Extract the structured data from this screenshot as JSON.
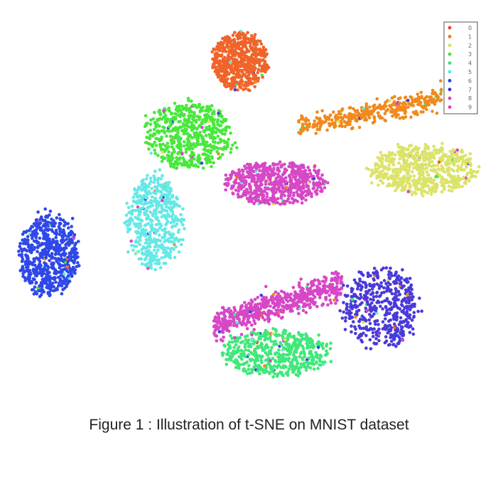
{
  "caption": "Figure 1 : Illustration of t-SNE on MNIST dataset",
  "chart_data": {
    "type": "scatter",
    "title": "",
    "xlabel": "",
    "ylabel": "",
    "axes_visible": false,
    "grid": false,
    "legend_position": "top-right",
    "legend": [
      {
        "label": "0",
        "color": "#e8452c",
        "marker": "square"
      },
      {
        "label": "1",
        "color": "#f07a14",
        "marker": "star"
      },
      {
        "label": "2",
        "color": "#d8e060",
        "marker": "circle"
      },
      {
        "label": "3",
        "color": "#40e640",
        "marker": "circle"
      },
      {
        "label": "4",
        "color": "#3ee07a",
        "marker": "circle"
      },
      {
        "label": "5",
        "color": "#5ae8e6",
        "marker": "circle"
      },
      {
        "label": "6",
        "color": "#2040e0",
        "marker": "circle"
      },
      {
        "label": "7",
        "color": "#3c30d0",
        "marker": "circle"
      },
      {
        "label": "8",
        "color": "#d640c8",
        "marker": "circle"
      },
      {
        "label": "9",
        "color": "#d640c8",
        "marker": "circle"
      }
    ],
    "clusters": [
      {
        "label": "0",
        "color": "#f0642a",
        "center": [
          0.52,
          0.85
        ],
        "spread": [
          0.09,
          0.085
        ],
        "shape": "ellipse",
        "n": 650
      },
      {
        "label": "1",
        "color": "#f08a1e",
        "center": [
          1.42,
          0.62
        ],
        "spread": [
          0.36,
          0.045
        ],
        "shape": "band",
        "slope": 0.19,
        "n": 550
      },
      {
        "label": "2",
        "color": "#dbe36a",
        "center": [
          1.53,
          0.29
        ],
        "spread": [
          0.17,
          0.075
        ],
        "shape": "ellipse",
        "n": 650
      },
      {
        "label": "3",
        "color": "#48e83c",
        "center": [
          0.24,
          0.47
        ],
        "spread": [
          0.14,
          0.1
        ],
        "shape": "ellipse",
        "n": 600
      },
      {
        "label": "4",
        "color": "#40e87a",
        "center": [
          0.72,
          -0.66
        ],
        "spread": [
          0.17,
          0.07
        ],
        "shape": "ellipse",
        "n": 550
      },
      {
        "label": "5",
        "color": "#66e8e6",
        "center": [
          0.05,
          0.02
        ],
        "spread": [
          0.09,
          0.14
        ],
        "shape": "ellipse",
        "n": 550
      },
      {
        "label": "6",
        "color": "#2f48e8",
        "center": [
          -0.53,
          -0.15
        ],
        "spread": [
          0.095,
          0.125
        ],
        "shape": "ellipse",
        "n": 650
      },
      {
        "label": "7",
        "color": "#4a3ad8",
        "center": [
          1.3,
          -0.43
        ],
        "spread": [
          0.12,
          0.12
        ],
        "shape": "ellipse",
        "n": 500
      },
      {
        "label": "8",
        "color": "#d648c6",
        "center": [
          0.72,
          0.22
        ],
        "spread": [
          0.16,
          0.065
        ],
        "shape": "ellipse",
        "n": 650
      },
      {
        "label": "9",
        "color": "#d648c6",
        "center": [
          0.73,
          -0.41
        ],
        "spread": [
          0.22,
          0.06
        ],
        "shape": "band",
        "slope": 0.3,
        "n": 650
      }
    ],
    "xlim": [
      -0.72,
      1.78
    ],
    "ylim": [
      -0.85,
      1.02
    ]
  }
}
